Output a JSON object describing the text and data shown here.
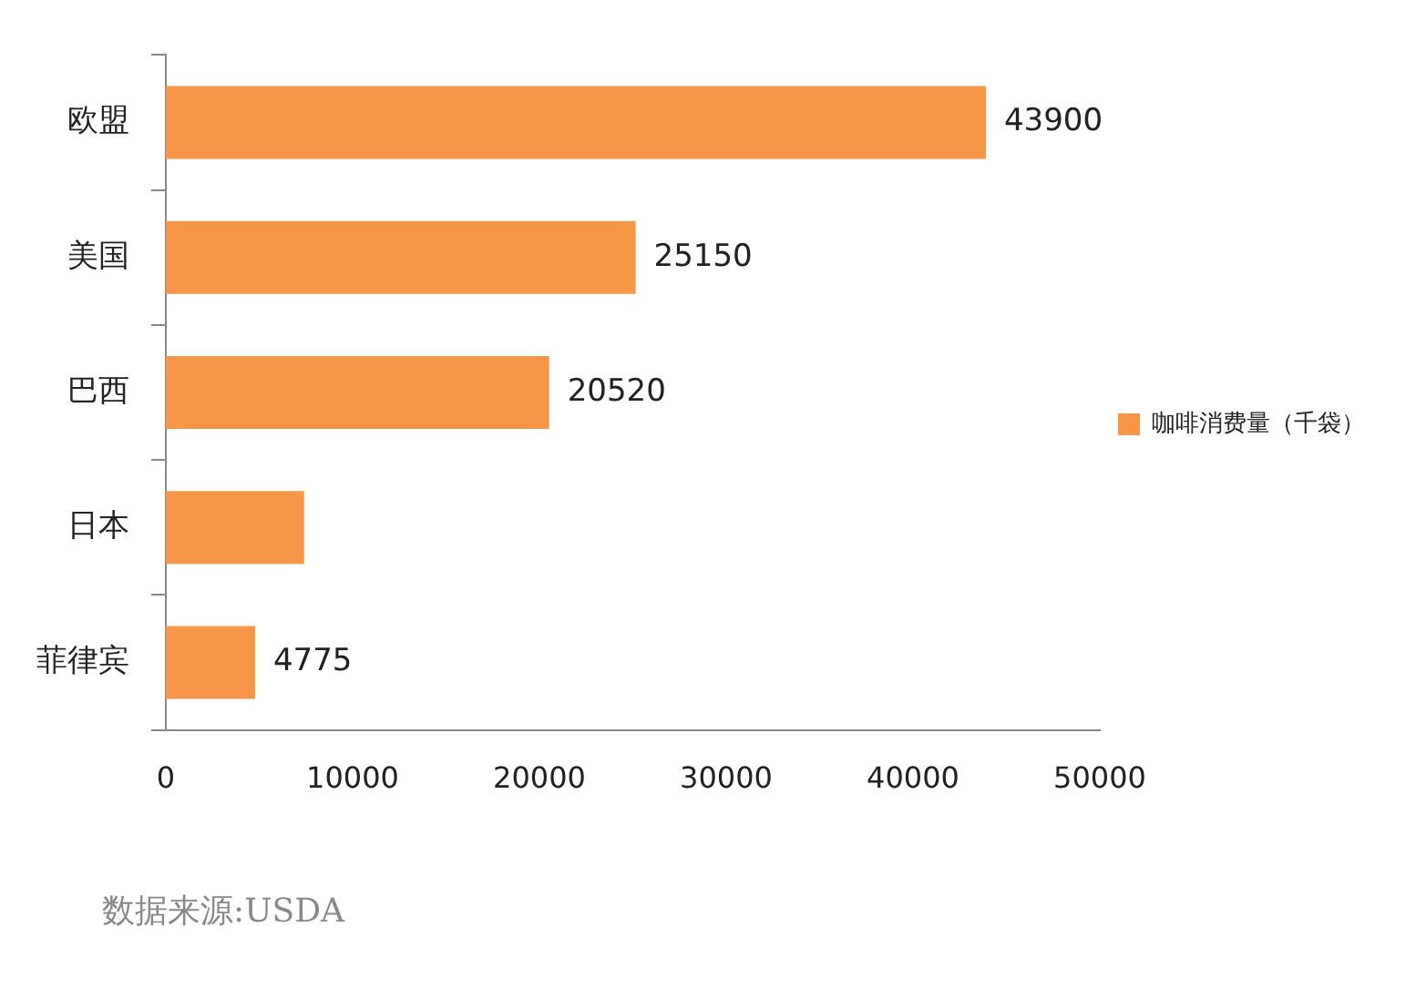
{
  "chart_data": {
    "type": "bar",
    "orientation": "horizontal",
    "categories": [
      "欧盟",
      "美国",
      "巴西",
      "日本",
      "菲律宾"
    ],
    "series": [
      {
        "name": "咖啡消费量（千袋）",
        "color": "#f79646",
        "values": [
          43900,
          25150,
          20520,
          7400,
          4775
        ],
        "value_labels": [
          "43900",
          "25150",
          "20520",
          null,
          "4775"
        ]
      }
    ],
    "xlim": [
      0,
      50000
    ],
    "xticks": [
      0,
      10000,
      20000,
      30000,
      40000,
      50000
    ],
    "grid": false,
    "legend": "right",
    "annotations": [
      "数据来源:USDA"
    ]
  }
}
